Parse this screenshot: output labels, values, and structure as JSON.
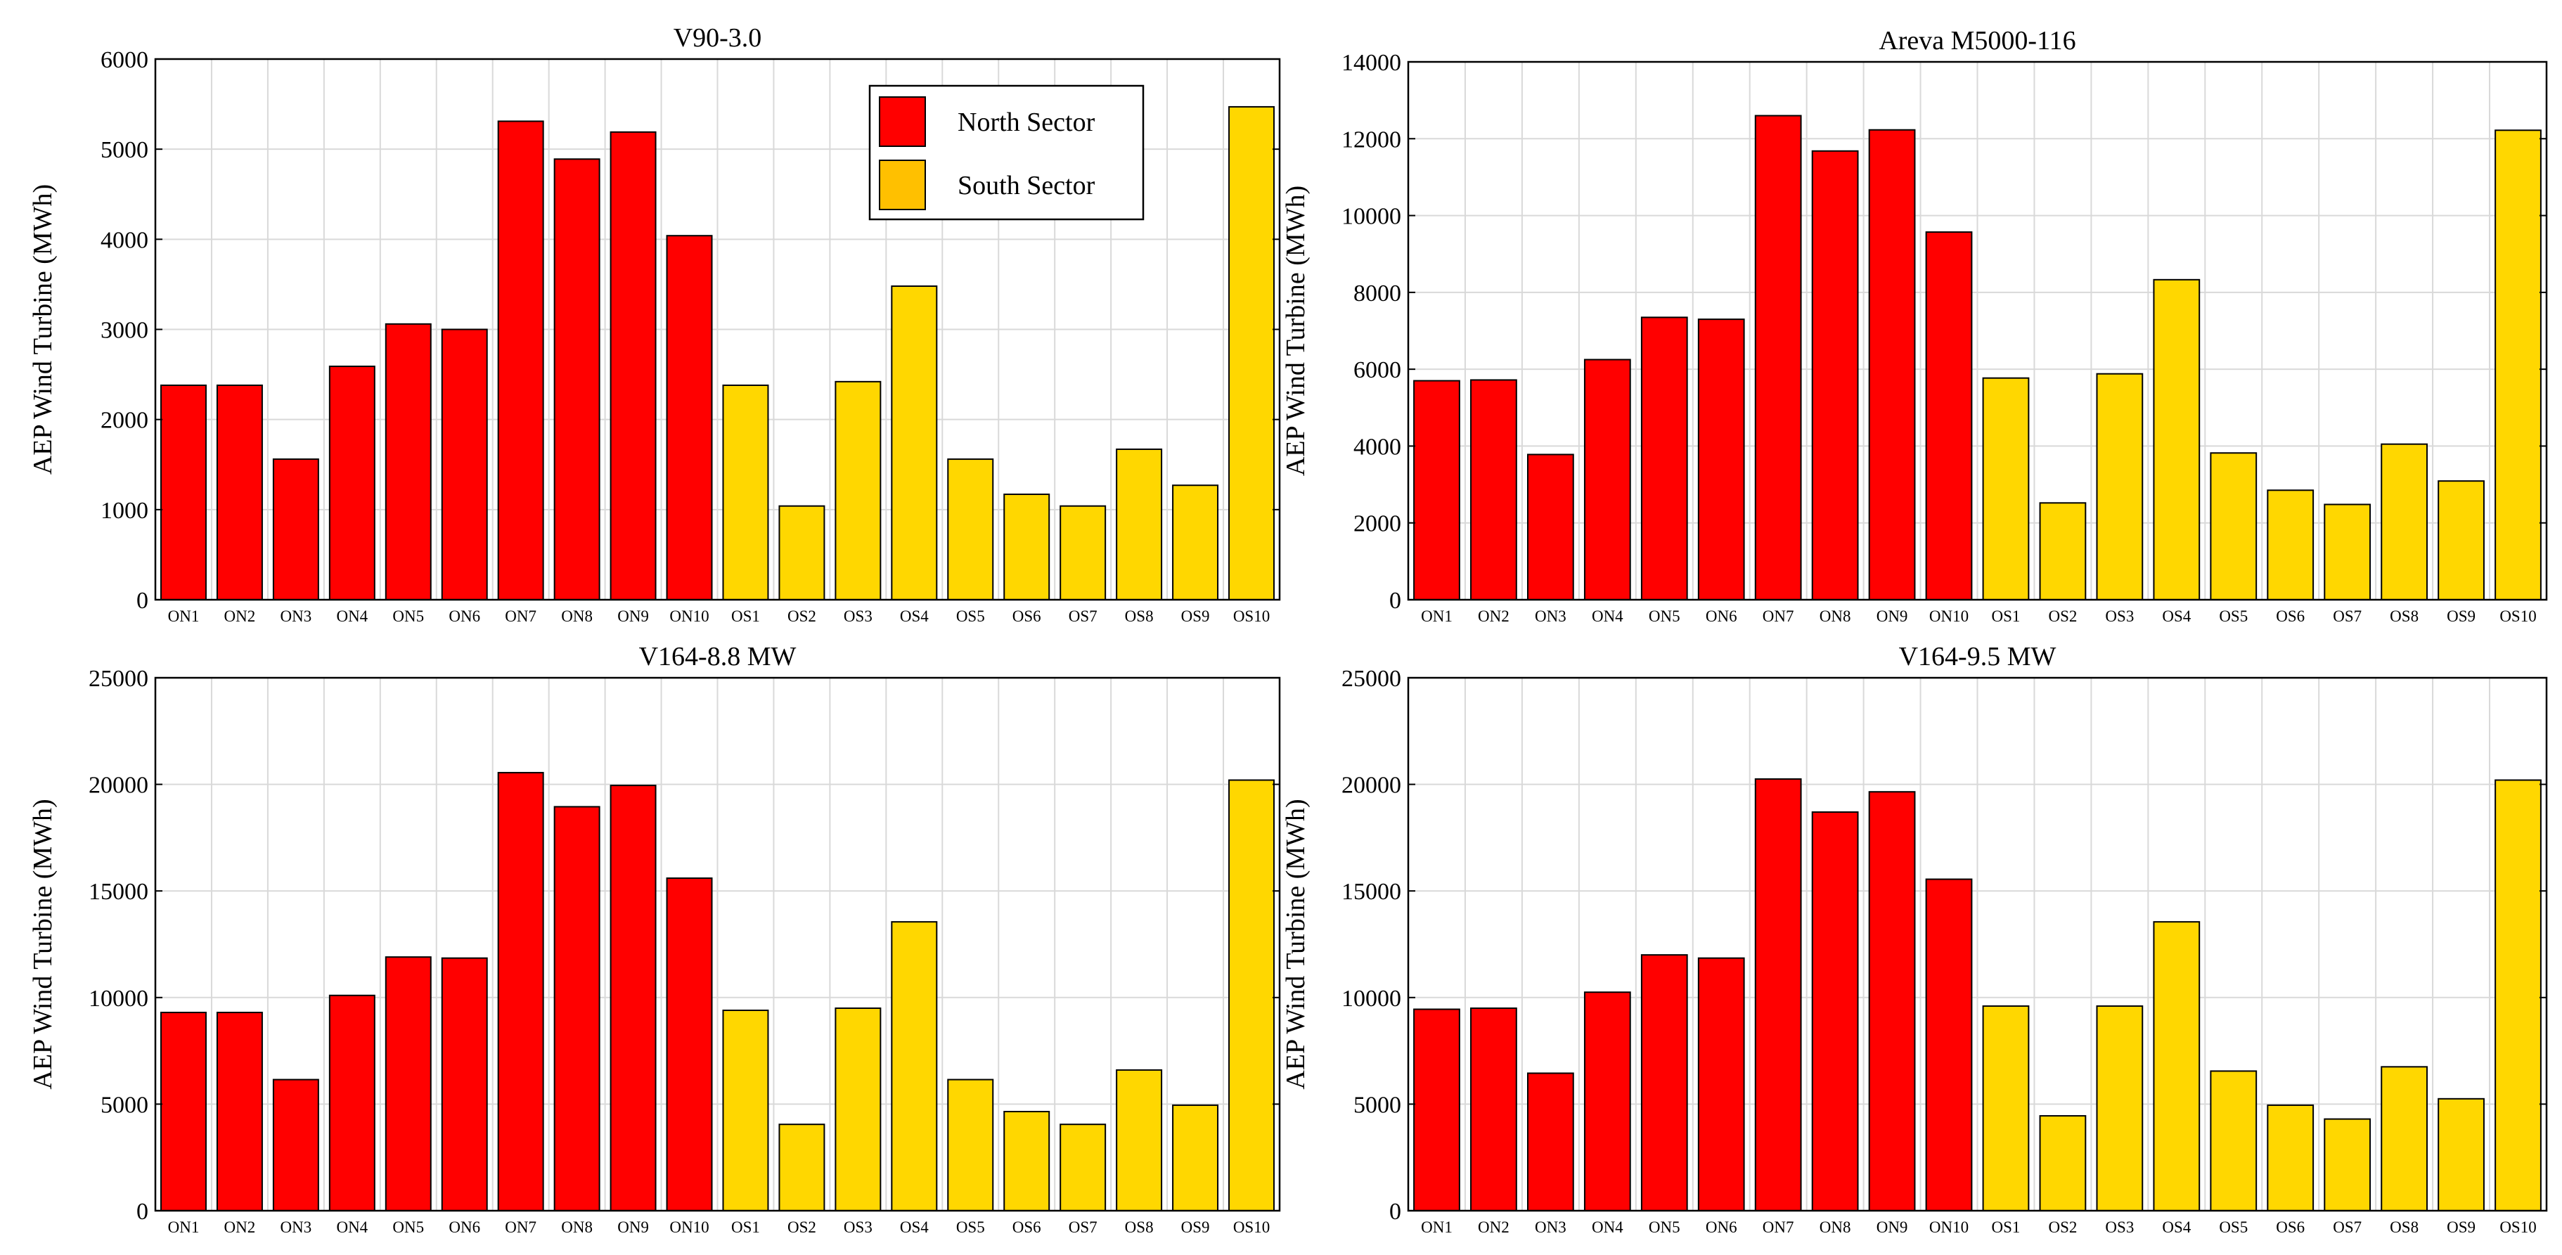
{
  "chart_data": [
    {
      "type": "bar",
      "title": "V90-3.0",
      "xlabel": "",
      "ylabel": "AEP Wind Turbine (MWh)",
      "ylim": [
        0,
        6000
      ],
      "yticks": [
        0,
        1000,
        2000,
        3000,
        4000,
        5000,
        6000
      ],
      "grid": true,
      "categories": [
        "ON1",
        "ON2",
        "ON3",
        "ON4",
        "ON5",
        "ON6",
        "ON7",
        "ON8",
        "ON9",
        "ON10",
        "OS1",
        "OS2",
        "OS3",
        "OS4",
        "OS5",
        "OS6",
        "OS7",
        "OS8",
        "OS9",
        "OS10"
      ],
      "series": [
        {
          "name": "North Sector",
          "color": "#ff0000",
          "values": [
            2380,
            2380,
            1560,
            2590,
            3060,
            3000,
            5310,
            4890,
            5190,
            4040,
            null,
            null,
            null,
            null,
            null,
            null,
            null,
            null,
            null,
            null
          ]
        },
        {
          "name": "South Sector",
          "color": "#ffd700",
          "values": [
            null,
            null,
            null,
            null,
            null,
            null,
            null,
            null,
            null,
            null,
            2380,
            1040,
            2420,
            3480,
            1560,
            1170,
            1040,
            1670,
            1270,
            5470
          ]
        }
      ],
      "legend": {
        "position": "top-right"
      }
    },
    {
      "type": "bar",
      "title": "Areva M5000-116",
      "xlabel": "",
      "ylabel": "AEP Wind Turbine (MWh)",
      "ylim": [
        0,
        14000
      ],
      "yticks": [
        0,
        2000,
        4000,
        6000,
        8000,
        10000,
        12000,
        14000
      ],
      "grid": true,
      "categories": [
        "ON1",
        "ON2",
        "ON3",
        "ON4",
        "ON5",
        "ON6",
        "ON7",
        "ON8",
        "ON9",
        "ON10",
        "OS1",
        "OS2",
        "OS3",
        "OS4",
        "OS5",
        "OS6",
        "OS7",
        "OS8",
        "OS9",
        "OS10"
      ],
      "series": [
        {
          "name": "North Sector",
          "color": "#ff0000",
          "values": [
            5700,
            5720,
            3780,
            6250,
            7350,
            7300,
            12600,
            11680,
            12230,
            9570,
            null,
            null,
            null,
            null,
            null,
            null,
            null,
            null,
            null,
            null
          ]
        },
        {
          "name": "South Sector",
          "color": "#ffd700",
          "values": [
            null,
            null,
            null,
            null,
            null,
            null,
            null,
            null,
            null,
            null,
            5770,
            2520,
            5880,
            8330,
            3820,
            2850,
            2480,
            4050,
            3090,
            12220
          ]
        }
      ]
    },
    {
      "type": "bar",
      "title": "V164-8.8 MW",
      "xlabel": "",
      "ylabel": "AEP Wind Turbine (MWh)",
      "ylim": [
        0,
        25000
      ],
      "yticks": [
        0,
        5000,
        10000,
        15000,
        20000,
        25000
      ],
      "grid": true,
      "categories": [
        "ON1",
        "ON2",
        "ON3",
        "ON4",
        "ON5",
        "ON6",
        "ON7",
        "ON8",
        "ON9",
        "ON10",
        "OS1",
        "OS2",
        "OS3",
        "OS4",
        "OS5",
        "OS6",
        "OS7",
        "OS8",
        "OS9",
        "OS10"
      ],
      "series": [
        {
          "name": "North Sector",
          "color": "#ff0000",
          "values": [
            9300,
            9300,
            6150,
            10100,
            11900,
            11850,
            20550,
            18950,
            19950,
            15600,
            null,
            null,
            null,
            null,
            null,
            null,
            null,
            null,
            null,
            null
          ]
        },
        {
          "name": "South Sector",
          "color": "#ffd700",
          "values": [
            null,
            null,
            null,
            null,
            null,
            null,
            null,
            null,
            null,
            null,
            9400,
            4050,
            9500,
            13550,
            6150,
            4650,
            4050,
            6600,
            4950,
            20200
          ]
        }
      ]
    },
    {
      "type": "bar",
      "title": "V164-9.5 MW",
      "xlabel": "",
      "ylabel": "AEP Wind Turbine (MWh)",
      "ylim": [
        0,
        25000
      ],
      "yticks": [
        0,
        5000,
        10000,
        15000,
        20000,
        25000
      ],
      "grid": true,
      "categories": [
        "ON1",
        "ON2",
        "ON3",
        "ON4",
        "ON5",
        "ON6",
        "ON7",
        "ON8",
        "ON9",
        "ON10",
        "OS1",
        "OS2",
        "OS3",
        "OS4",
        "OS5",
        "OS6",
        "OS7",
        "OS8",
        "OS9",
        "OS10"
      ],
      "series": [
        {
          "name": "North Sector",
          "color": "#ff0000",
          "values": [
            9450,
            9500,
            6450,
            10250,
            12000,
            11850,
            20250,
            18700,
            19650,
            15550,
            null,
            null,
            null,
            null,
            null,
            null,
            null,
            null,
            null,
            null
          ]
        },
        {
          "name": "South Sector",
          "color": "#ffd700",
          "values": [
            null,
            null,
            null,
            null,
            null,
            null,
            null,
            null,
            null,
            null,
            9600,
            4450,
            9600,
            13550,
            6550,
            4950,
            4300,
            6750,
            5250,
            20200
          ]
        }
      ]
    }
  ],
  "legend": {
    "entries": [
      {
        "label": "North Sector",
        "color": "#ff0000"
      },
      {
        "label": "South Sector",
        "color": "#ffc000"
      }
    ]
  }
}
